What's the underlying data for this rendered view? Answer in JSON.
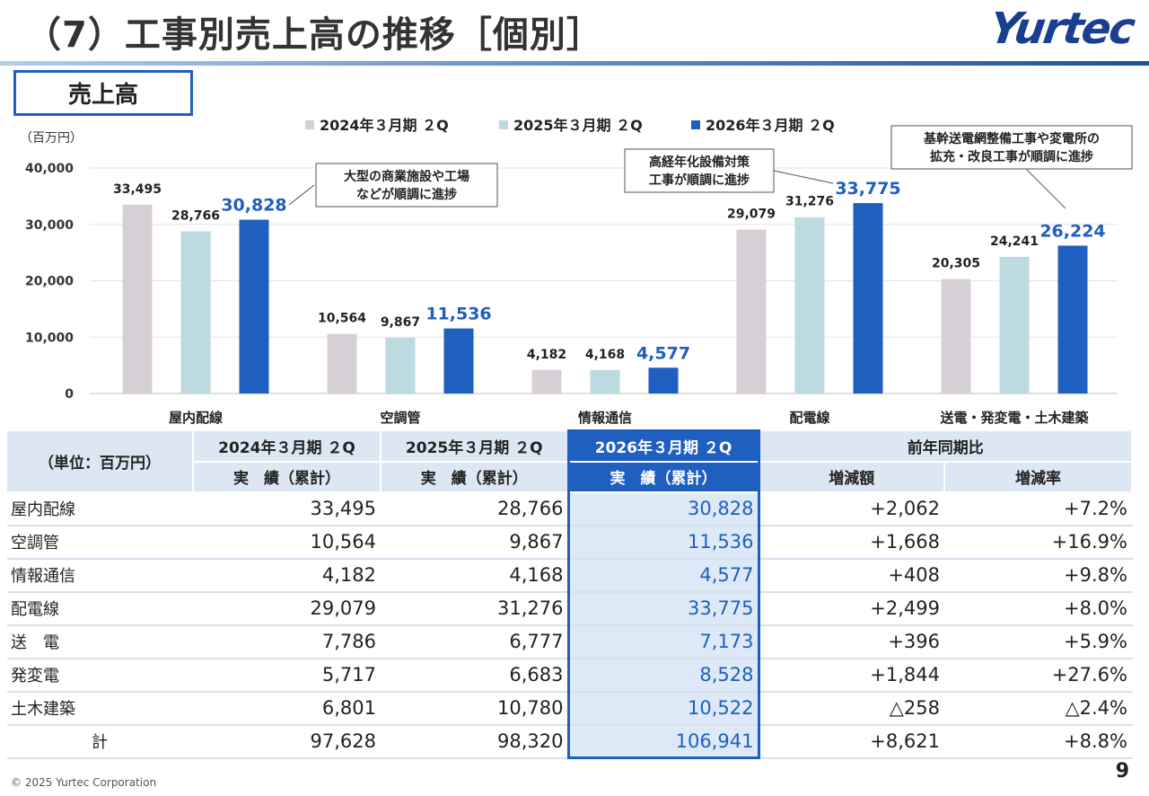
{
  "slide": {
    "title": "（7）工事別売上高の推移［個別］",
    "logo": "Yurtec",
    "section": "売上高",
    "footer": "© 2025 Yurtec Corporation",
    "page": "9"
  },
  "colors": {
    "series": [
      "#d6d0d6",
      "#bcdadf",
      "#1f5fbf"
    ],
    "highlight": "#1f5fbf",
    "header_bg": "#dde7f3"
  },
  "chart_data": {
    "type": "bar",
    "unit_label": "（百万円）",
    "categories": [
      "屋内配線",
      "空調管",
      "情報通信",
      "配電線",
      "送電・発変電・土木建築"
    ],
    "series": [
      {
        "name": "2024年３月期 ２Q",
        "values": [
          33495,
          10564,
          4182,
          29079,
          20305
        ]
      },
      {
        "name": "2025年３月期 ２Q",
        "values": [
          28766,
          9867,
          4168,
          31276,
          24241
        ]
      },
      {
        "name": "2026年３月期 ２Q",
        "values": [
          30828,
          11536,
          4577,
          33775,
          26224
        ]
      }
    ],
    "value_labels": [
      [
        "33,495",
        "10,564",
        "4,182",
        "29,079",
        "20,305"
      ],
      [
        "28,766",
        "9,867",
        "4,168",
        "31,276",
        "24,241"
      ],
      [
        "30,828",
        "11,536",
        "4,577",
        "33,775",
        "26,224"
      ]
    ],
    "ylim": [
      0,
      40000
    ],
    "yticks": [
      0,
      10000,
      20000,
      30000,
      40000
    ],
    "ytick_labels": [
      "0",
      "10,000",
      "20,000",
      "30,000",
      "40,000"
    ],
    "legend_position": "top",
    "annotations": [
      {
        "category_index": 0,
        "lines": [
          "大型の商業施設や工場",
          "などが順調に進捗"
        ]
      },
      {
        "category_index": 3,
        "lines": [
          "高経年化設備対策",
          "工事が順調に進捗"
        ]
      },
      {
        "category_index": 4,
        "lines": [
          "基幹送電網整備工事や変電所の",
          "拡充・改良工事が順調に進捗"
        ]
      }
    ]
  },
  "table": {
    "unit": "（単位：百万円）",
    "col_headers": [
      "2024年３月期 ２Q",
      "2025年３月期 ２Q",
      "2026年３月期 ２Q",
      "前年同期比"
    ],
    "sub_headers": [
      "実　績（累計）",
      "実　績（累計）",
      "実　績（累計）",
      "増減額",
      "増減率"
    ],
    "rows": [
      {
        "label": "屋内配線",
        "v": [
          "33,495",
          "28,766",
          "30,828",
          "+2,062",
          "+7.2%"
        ]
      },
      {
        "label": "空調管",
        "v": [
          "10,564",
          "9,867",
          "11,536",
          "+1,668",
          "+16.9%"
        ]
      },
      {
        "label": "情報通信",
        "v": [
          "4,182",
          "4,168",
          "4,577",
          "+408",
          "+9.8%"
        ]
      },
      {
        "label": "配電線",
        "v": [
          "29,079",
          "31,276",
          "33,775",
          "+2,499",
          "+8.0%"
        ]
      },
      {
        "label": "送　電",
        "v": [
          "7,786",
          "6,777",
          "7,173",
          "+396",
          "+5.9%"
        ]
      },
      {
        "label": "発変電",
        "v": [
          "5,717",
          "6,683",
          "8,528",
          "+1,844",
          "+27.6%"
        ]
      },
      {
        "label": "土木建築",
        "v": [
          "6,801",
          "10,780",
          "10,522",
          "△258",
          "△2.4%"
        ]
      },
      {
        "label": "計",
        "v": [
          "97,628",
          "98,320",
          "106,941",
          "+8,621",
          "+8.8%"
        ]
      }
    ]
  }
}
